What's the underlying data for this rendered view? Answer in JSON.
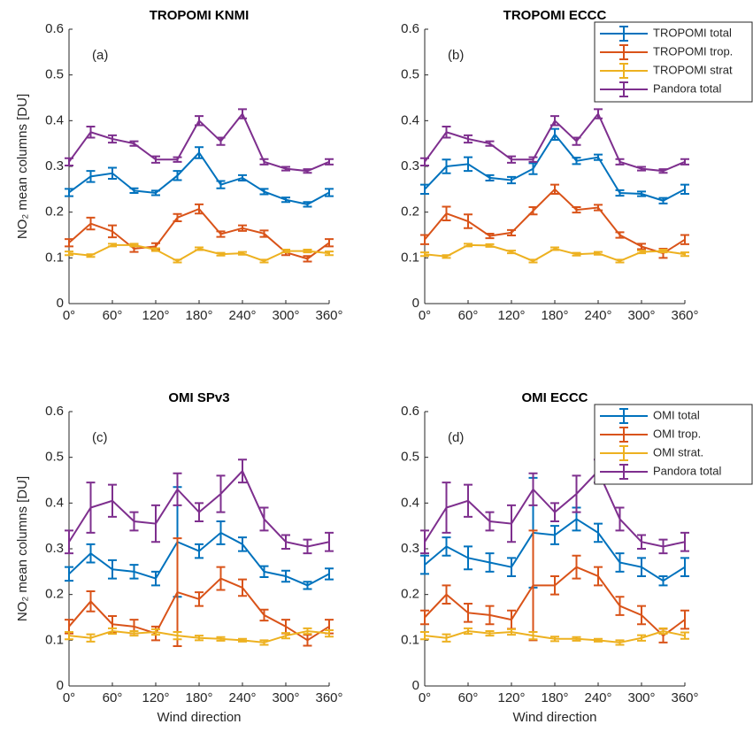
{
  "chart_data": [
    {
      "type": "line",
      "title": "TROPOMI KNMI",
      "annotation": "(a)",
      "ylabel": "NO₂ mean columns [DU]",
      "x": [
        0,
        30,
        60,
        90,
        120,
        150,
        180,
        210,
        240,
        270,
        300,
        330,
        360
      ],
      "xlim": [
        0,
        360
      ],
      "xticks": [
        {
          "value": 0,
          "label": "0°"
        },
        {
          "value": 60,
          "label": "60°"
        },
        {
          "value": 120,
          "label": "120°"
        },
        {
          "value": 180,
          "label": "180°"
        },
        {
          "value": 240,
          "label": "240°"
        },
        {
          "value": 300,
          "label": "300°"
        },
        {
          "value": 360,
          "label": "360°"
        }
      ],
      "ylim": [
        0,
        0.6
      ],
      "yticks": [
        0,
        0.1,
        0.2,
        0.3,
        0.4,
        0.5,
        0.6
      ],
      "series": [
        {
          "name": "TROPOMI total",
          "color": "#0072bd",
          "values": [
            0.243,
            0.278,
            0.285,
            0.247,
            0.242,
            0.28,
            0.33,
            0.26,
            0.275,
            0.245,
            0.227,
            0.217,
            0.243
          ],
          "errors": [
            0.008,
            0.012,
            0.012,
            0.005,
            0.005,
            0.01,
            0.012,
            0.008,
            0.006,
            0.006,
            0.005,
            0.005,
            0.008
          ]
        },
        {
          "name": "TROPOMI trop.",
          "color": "#d95319",
          "values": [
            0.133,
            0.175,
            0.158,
            0.12,
            0.125,
            0.188,
            0.207,
            0.152,
            0.165,
            0.153,
            0.112,
            0.098,
            0.133
          ],
          "errors": [
            0.008,
            0.013,
            0.013,
            0.007,
            0.007,
            0.008,
            0.01,
            0.006,
            0.006,
            0.007,
            0.006,
            0.006,
            0.008
          ]
        },
        {
          "name": "TROPOMI strat",
          "color": "#edb120",
          "values": [
            0.11,
            0.105,
            0.128,
            0.128,
            0.118,
            0.093,
            0.12,
            0.108,
            0.11,
            0.093,
            0.115,
            0.115,
            0.11
          ],
          "errors": [
            0.004,
            0.003,
            0.003,
            0.003,
            0.003,
            0.003,
            0.003,
            0.003,
            0.003,
            0.003,
            0.003,
            0.003,
            0.004
          ]
        },
        {
          "name": "Pandora total",
          "color": "#7e2f8e",
          "values": [
            0.31,
            0.375,
            0.36,
            0.35,
            0.315,
            0.315,
            0.4,
            0.355,
            0.415,
            0.31,
            0.295,
            0.29,
            0.31
          ],
          "errors": [
            0.008,
            0.012,
            0.008,
            0.005,
            0.007,
            0.005,
            0.01,
            0.008,
            0.01,
            0.006,
            0.004,
            0.004,
            0.006
          ]
        }
      ]
    },
    {
      "type": "line",
      "title": "TROPOMI ECCC",
      "annotation": "(b)",
      "legend": "northeast",
      "x": [
        0,
        30,
        60,
        90,
        120,
        150,
        180,
        210,
        240,
        270,
        300,
        330,
        360
      ],
      "xlim": [
        0,
        360
      ],
      "xticks": [
        {
          "value": 0,
          "label": "0°"
        },
        {
          "value": 60,
          "label": "60°"
        },
        {
          "value": 120,
          "label": "120°"
        },
        {
          "value": 180,
          "label": "180°"
        },
        {
          "value": 240,
          "label": "240°"
        },
        {
          "value": 300,
          "label": "300°"
        },
        {
          "value": 360,
          "label": "360°"
        }
      ],
      "ylim": [
        0,
        0.6
      ],
      "yticks": [
        0,
        0.1,
        0.2,
        0.3,
        0.4,
        0.5,
        0.6
      ],
      "series": [
        {
          "name": "TROPOMI total",
          "color": "#0072bd",
          "values": [
            0.25,
            0.3,
            0.305,
            0.275,
            0.27,
            0.295,
            0.37,
            0.312,
            0.32,
            0.242,
            0.24,
            0.225,
            0.25
          ],
          "errors": [
            0.01,
            0.015,
            0.015,
            0.006,
            0.007,
            0.012,
            0.012,
            0.007,
            0.006,
            0.006,
            0.005,
            0.006,
            0.01
          ]
        },
        {
          "name": "TROPOMI trop.",
          "color": "#d95319",
          "values": [
            0.14,
            0.197,
            0.18,
            0.148,
            0.155,
            0.203,
            0.25,
            0.205,
            0.21,
            0.15,
            0.125,
            0.11,
            0.14
          ],
          "errors": [
            0.01,
            0.015,
            0.015,
            0.005,
            0.006,
            0.008,
            0.01,
            0.006,
            0.006,
            0.006,
            0.006,
            0.01,
            0.01
          ]
        },
        {
          "name": "TROPOMI strat",
          "color": "#edb120",
          "values": [
            0.108,
            0.103,
            0.128,
            0.127,
            0.113,
            0.093,
            0.12,
            0.108,
            0.11,
            0.093,
            0.113,
            0.115,
            0.108
          ],
          "errors": [
            0.004,
            0.003,
            0.003,
            0.003,
            0.003,
            0.003,
            0.003,
            0.003,
            0.003,
            0.003,
            0.003,
            0.003,
            0.004
          ]
        },
        {
          "name": "Pandora total",
          "color": "#7e2f8e",
          "values": [
            0.31,
            0.375,
            0.36,
            0.35,
            0.315,
            0.315,
            0.4,
            0.355,
            0.415,
            0.31,
            0.295,
            0.29,
            0.31
          ],
          "errors": [
            0.008,
            0.012,
            0.008,
            0.005,
            0.007,
            0.005,
            0.01,
            0.008,
            0.01,
            0.006,
            0.004,
            0.004,
            0.006
          ]
        }
      ]
    },
    {
      "type": "line",
      "title": "OMI SPv3",
      "annotation": "(c)",
      "ylabel": "NO₂ mean columns [DU]",
      "xlabel": "Wind direction",
      "x": [
        0,
        30,
        60,
        90,
        120,
        150,
        180,
        210,
        240,
        270,
        300,
        330,
        360
      ],
      "xlim": [
        0,
        360
      ],
      "xticks": [
        {
          "value": 0,
          "label": "0°"
        },
        {
          "value": 60,
          "label": "60°"
        },
        {
          "value": 120,
          "label": "120°"
        },
        {
          "value": 180,
          "label": "180°"
        },
        {
          "value": 240,
          "label": "240°"
        },
        {
          "value": 300,
          "label": "300°"
        },
        {
          "value": 360,
          "label": "360°"
        }
      ],
      "ylim": [
        0,
        0.6
      ],
      "yticks": [
        0,
        0.1,
        0.2,
        0.3,
        0.4,
        0.5,
        0.6
      ],
      "series": [
        {
          "name": "OMI total",
          "color": "#0072bd",
          "values": [
            0.245,
            0.29,
            0.255,
            0.25,
            0.235,
            0.315,
            0.295,
            0.335,
            0.31,
            0.25,
            0.24,
            0.22,
            0.245
          ],
          "errors": [
            0.015,
            0.02,
            0.02,
            0.015,
            0.015,
            0.12,
            0.015,
            0.025,
            0.015,
            0.012,
            0.012,
            0.008,
            0.012
          ]
        },
        {
          "name": "OMI trop.",
          "color": "#d95319",
          "values": [
            0.13,
            0.185,
            0.135,
            0.13,
            0.115,
            0.205,
            0.19,
            0.235,
            0.215,
            0.155,
            0.13,
            0.1,
            0.13
          ],
          "errors": [
            0.015,
            0.022,
            0.018,
            0.015,
            0.015,
            0.118,
            0.015,
            0.025,
            0.018,
            0.012,
            0.015,
            0.012,
            0.015
          ]
        },
        {
          "name": "OMI strat.",
          "color": "#edb120",
          "values": [
            0.11,
            0.105,
            0.12,
            0.115,
            0.118,
            0.11,
            0.105,
            0.103,
            0.1,
            0.095,
            0.11,
            0.12,
            0.115
          ],
          "errors": [
            0.008,
            0.008,
            0.006,
            0.005,
            0.006,
            0.008,
            0.005,
            0.004,
            0.003,
            0.005,
            0.006,
            0.006,
            0.007
          ]
        },
        {
          "name": "Pandora total",
          "color": "#7e2f8e",
          "values": [
            0.315,
            0.39,
            0.405,
            0.36,
            0.355,
            0.43,
            0.38,
            0.42,
            0.47,
            0.365,
            0.315,
            0.305,
            0.315
          ],
          "errors": [
            0.025,
            0.055,
            0.035,
            0.02,
            0.04,
            0.035,
            0.02,
            0.04,
            0.025,
            0.025,
            0.015,
            0.015,
            0.02
          ]
        }
      ]
    },
    {
      "type": "line",
      "title": "OMI ECCC",
      "annotation": "(d)",
      "xlabel": "Wind direction",
      "legend": "northeast",
      "x": [
        0,
        30,
        60,
        90,
        120,
        150,
        180,
        210,
        240,
        270,
        300,
        330,
        360
      ],
      "xlim": [
        0,
        360
      ],
      "xticks": [
        {
          "value": 0,
          "label": "0°"
        },
        {
          "value": 60,
          "label": "60°"
        },
        {
          "value": 120,
          "label": "120°"
        },
        {
          "value": 180,
          "label": "180°"
        },
        {
          "value": 240,
          "label": "240°"
        },
        {
          "value": 300,
          "label": "300°"
        },
        {
          "value": 360,
          "label": "360°"
        }
      ],
      "ylim": [
        0,
        0.6
      ],
      "yticks": [
        0,
        0.1,
        0.2,
        0.3,
        0.4,
        0.5,
        0.6
      ],
      "series": [
        {
          "name": "OMI total",
          "color": "#0072bd",
          "values": [
            0.265,
            0.305,
            0.28,
            0.27,
            0.26,
            0.335,
            0.33,
            0.365,
            0.335,
            0.27,
            0.26,
            0.23,
            0.26
          ],
          "errors": [
            0.02,
            0.02,
            0.025,
            0.02,
            0.02,
            0.12,
            0.02,
            0.025,
            0.02,
            0.02,
            0.02,
            0.01,
            0.02
          ]
        },
        {
          "name": "OMI trop.",
          "color": "#d95319",
          "values": [
            0.15,
            0.2,
            0.16,
            0.155,
            0.145,
            0.22,
            0.22,
            0.26,
            0.24,
            0.175,
            0.155,
            0.11,
            0.145
          ],
          "errors": [
            0.015,
            0.02,
            0.02,
            0.02,
            0.02,
            0.12,
            0.02,
            0.025,
            0.02,
            0.02,
            0.02,
            0.015,
            0.02
          ]
        },
        {
          "name": "OMI strat.",
          "color": "#edb120",
          "values": [
            0.11,
            0.105,
            0.12,
            0.115,
            0.118,
            0.11,
            0.103,
            0.103,
            0.1,
            0.095,
            0.105,
            0.12,
            0.11
          ],
          "errors": [
            0.008,
            0.008,
            0.006,
            0.005,
            0.006,
            0.008,
            0.005,
            0.004,
            0.003,
            0.005,
            0.006,
            0.006,
            0.007
          ]
        },
        {
          "name": "Pandora total",
          "color": "#7e2f8e",
          "values": [
            0.315,
            0.39,
            0.405,
            0.36,
            0.355,
            0.43,
            0.38,
            0.42,
            0.47,
            0.365,
            0.315,
            0.305,
            0.315
          ],
          "errors": [
            0.025,
            0.055,
            0.035,
            0.02,
            0.04,
            0.035,
            0.02,
            0.04,
            0.025,
            0.025,
            0.015,
            0.015,
            0.02
          ]
        }
      ]
    }
  ]
}
